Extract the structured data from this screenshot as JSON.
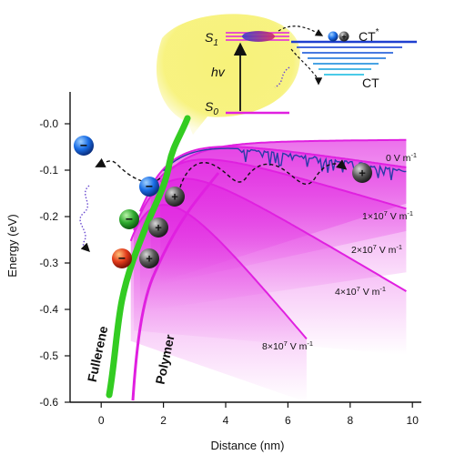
{
  "axes": {
    "x_label": "Distance (nm)",
    "y_label": "Energy (eV)",
    "x_ticks": [
      "0",
      "2",
      "4",
      "6",
      "8",
      "10"
    ],
    "y_ticks": [
      "-0.0",
      "-0.1",
      "-0.2",
      "-0.3",
      "-0.4",
      "-0.5",
      "-0.6"
    ]
  },
  "field_curves": [
    {
      "label_main": "0 V m",
      "label_exp": "-1",
      "field_Vm": 0
    },
    {
      "label_main": "1×10",
      "label_exp": "7",
      "label_tail": " V m",
      "label_tail_exp": "-1",
      "field_Vm": 10000000.0
    },
    {
      "label_main": "2×10",
      "label_exp": "7",
      "label_tail": " V m",
      "label_tail_exp": "-1",
      "field_Vm": 20000000.0
    },
    {
      "label_main": "4×10",
      "label_exp": "7",
      "label_tail": " V m",
      "label_tail_exp": "-1",
      "field_Vm": 40000000.0
    },
    {
      "label_main": "8×10",
      "label_exp": "7",
      "label_tail": " V m",
      "label_tail_exp": "-1",
      "field_Vm": 80000000.0
    }
  ],
  "materials": {
    "fullerene": "Fullerene",
    "polymer": "Polymer"
  },
  "inset": {
    "s1": "S",
    "s1_sub": "1",
    "s0": "S",
    "s0_sub": "0",
    "hv": "hv",
    "ct_star": "CT",
    "ct_star_sup": "*",
    "ct": "CT"
  },
  "charges": {
    "electron": "−",
    "hole": "+"
  },
  "colors": {
    "fullerene_green": "#33cc22",
    "polymer_magenta": "#e020e0",
    "highlight_yellow": "#f4f06a",
    "trace_blue": "#2a3aa8",
    "electron_blue": "#1a6ee6",
    "electron_green": "#2faa2f",
    "electron_red": "#e23a1a",
    "hole_gray": "#555555"
  }
}
